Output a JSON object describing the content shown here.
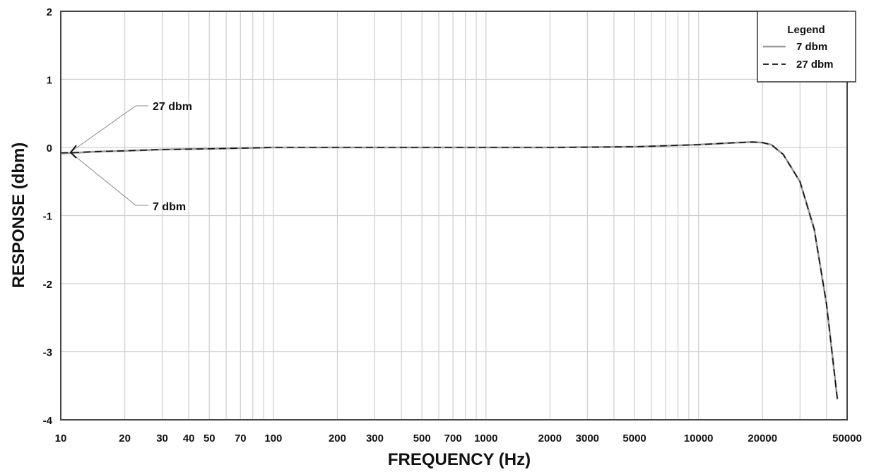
{
  "chart_data": {
    "type": "line",
    "title": "",
    "xlabel": "FREQUENCY (Hz)",
    "ylabel": "RESPONSE (dbm)",
    "x_scale": "log",
    "xlim": [
      10,
      50000
    ],
    "ylim": [
      -4,
      2
    ],
    "grid": true,
    "x_tick_labels": [
      "10",
      "20",
      "30",
      "40",
      "50",
      "70",
      "100",
      "200",
      "300",
      "500",
      "700",
      "1000",
      "2000",
      "3000",
      "5000",
      "10000",
      "20000",
      "50000"
    ],
    "y_tick_labels": [
      "2",
      "1",
      "0",
      "-1",
      "-2",
      "-3",
      "-4"
    ],
    "legend": {
      "title": "Legend",
      "position": "top-right",
      "entries": [
        "7 dbm",
        "27 dbm"
      ]
    },
    "annotations": [
      "27 dbm",
      "7 dbm"
    ],
    "series": [
      {
        "name": "7 dbm",
        "color": "#9a9a9a",
        "style": "solid",
        "x": [
          10,
          15,
          20,
          30,
          50,
          70,
          100,
          200,
          500,
          1000,
          2000,
          5000,
          10000,
          15000,
          18000,
          20000,
          22000,
          25000,
          30000,
          35000,
          40000,
          45000
        ],
        "y": [
          -0.09,
          -0.06,
          -0.05,
          -0.03,
          -0.02,
          -0.01,
          0.0,
          0.0,
          0.0,
          0.0,
          0.0,
          0.01,
          0.04,
          0.07,
          0.08,
          0.07,
          0.04,
          -0.1,
          -0.5,
          -1.2,
          -2.3,
          -3.7
        ]
      },
      {
        "name": "27 dbm",
        "color": "#111111",
        "style": "dashed",
        "x": [
          10,
          15,
          20,
          30,
          50,
          70,
          100,
          200,
          500,
          1000,
          2000,
          5000,
          10000,
          15000,
          18000,
          20000,
          22000,
          25000,
          30000,
          35000,
          40000,
          45000
        ],
        "y": [
          -0.08,
          -0.06,
          -0.05,
          -0.03,
          -0.02,
          -0.01,
          0.0,
          0.0,
          0.0,
          0.0,
          0.0,
          0.01,
          0.04,
          0.07,
          0.08,
          0.07,
          0.04,
          -0.1,
          -0.5,
          -1.2,
          -2.3,
          -3.7
        ]
      }
    ]
  }
}
